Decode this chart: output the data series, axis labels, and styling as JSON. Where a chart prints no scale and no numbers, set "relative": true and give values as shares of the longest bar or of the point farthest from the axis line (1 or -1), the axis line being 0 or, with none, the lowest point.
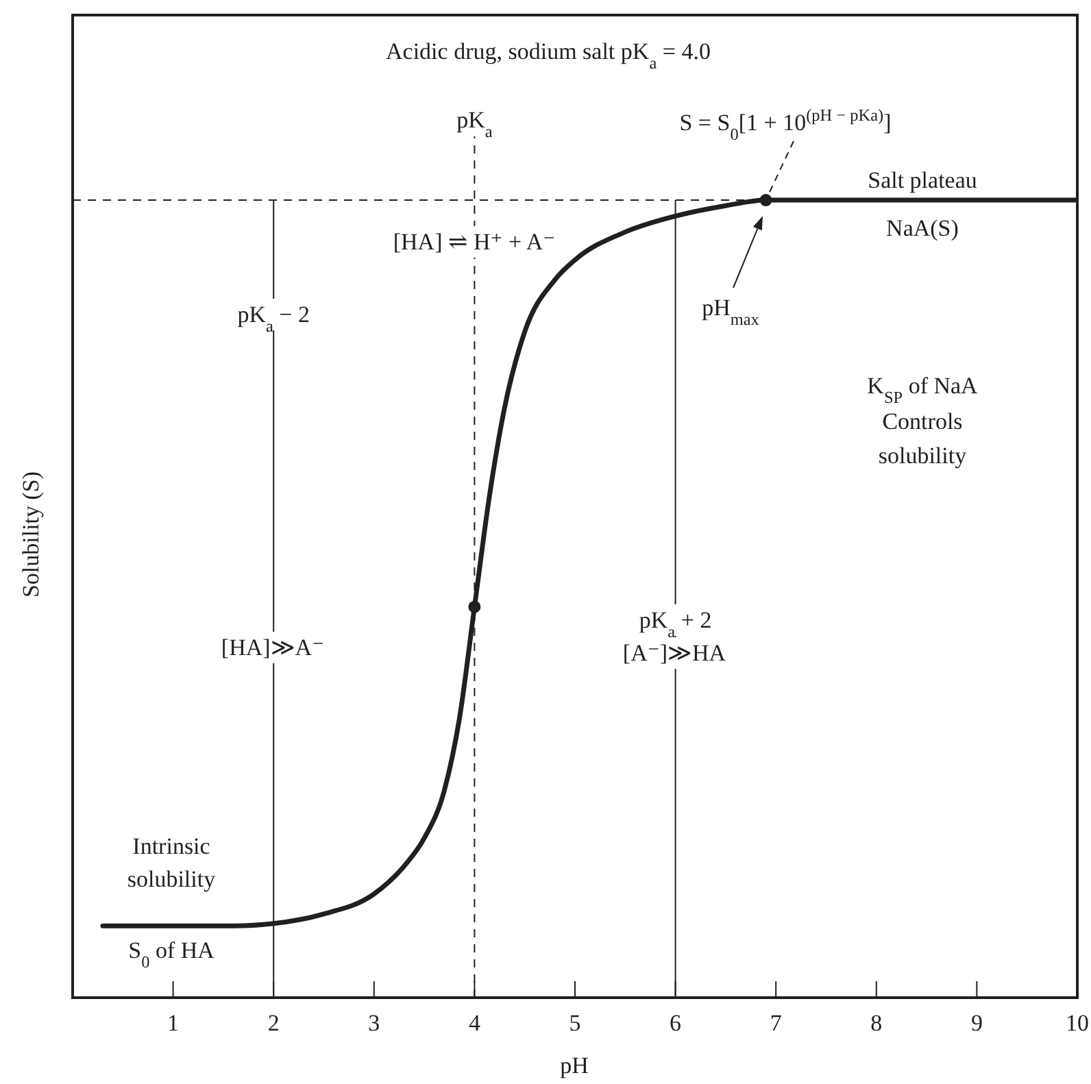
{
  "chart_data": {
    "type": "line",
    "title": "Acidic drug, sodium salt pK$_{a}$ = 4.0",
    "xlabel": "pH",
    "ylabel": "Solubility (S)",
    "relative": true,
    "xlim": [
      0,
      10
    ],
    "xticks": [
      1,
      2,
      3,
      4,
      5,
      6,
      7,
      8,
      9,
      10
    ],
    "series": [
      {
        "color": "#231f20",
        "x": [
          0.3,
          1.6,
          2,
          2.5,
          3,
          3.3,
          3.5,
          3.7,
          3.85,
          4,
          4.15,
          4.3,
          4.5,
          4.8,
          5,
          5.5,
          6,
          6.5,
          6.9,
          10
        ],
        "values": [
          0.09,
          0.09,
          0.093,
          0.105,
          0.13,
          0.165,
          0.2,
          0.26,
          0.35,
          0.49,
          0.63,
          0.74,
          0.835,
          0.9,
          0.925,
          0.96,
          0.98,
          0.993,
          1,
          1
        ]
      },
      {
        "type": "scatter",
        "color": "#231f20",
        "marker": "circle",
        "x": [
          4,
          6.9
        ],
        "values": [
          0.49,
          1
        ]
      }
    ],
    "ref_lines": [
      {
        "axis": "x",
        "value": 2,
        "label": "pK$_{a}$ − 2",
        "color": "#231f20"
      },
      {
        "axis": "x",
        "value": 4,
        "label": "pK$_{a}$",
        "color": "#231f20",
        "line_style": "dashed"
      },
      {
        "axis": "x",
        "value": 6,
        "label": "pK$_{a}$ + 2",
        "color": "#231f20"
      },
      {
        "axis": "y",
        "value": 1,
        "color": "#231f20",
        "line_style": "dashed"
      }
    ],
    "annotations": [
      {
        "text": "S = S$_{0}$[1 + 10$^{(pH − pKa)}$]",
        "x": 6.9,
        "y": 1
      },
      "Salt plateau",
      "NaA(S)",
      "[HA] ⇌ H⁺ + A⁻",
      "pH$_{max}$",
      "K$_{SP}$ of NaA",
      "Controls",
      "solubility",
      "[HA]≫A⁻",
      "[A⁻]≫HA",
      "Intrinsic",
      "solubility",
      "S$_{0}$ of HA"
    ]
  }
}
